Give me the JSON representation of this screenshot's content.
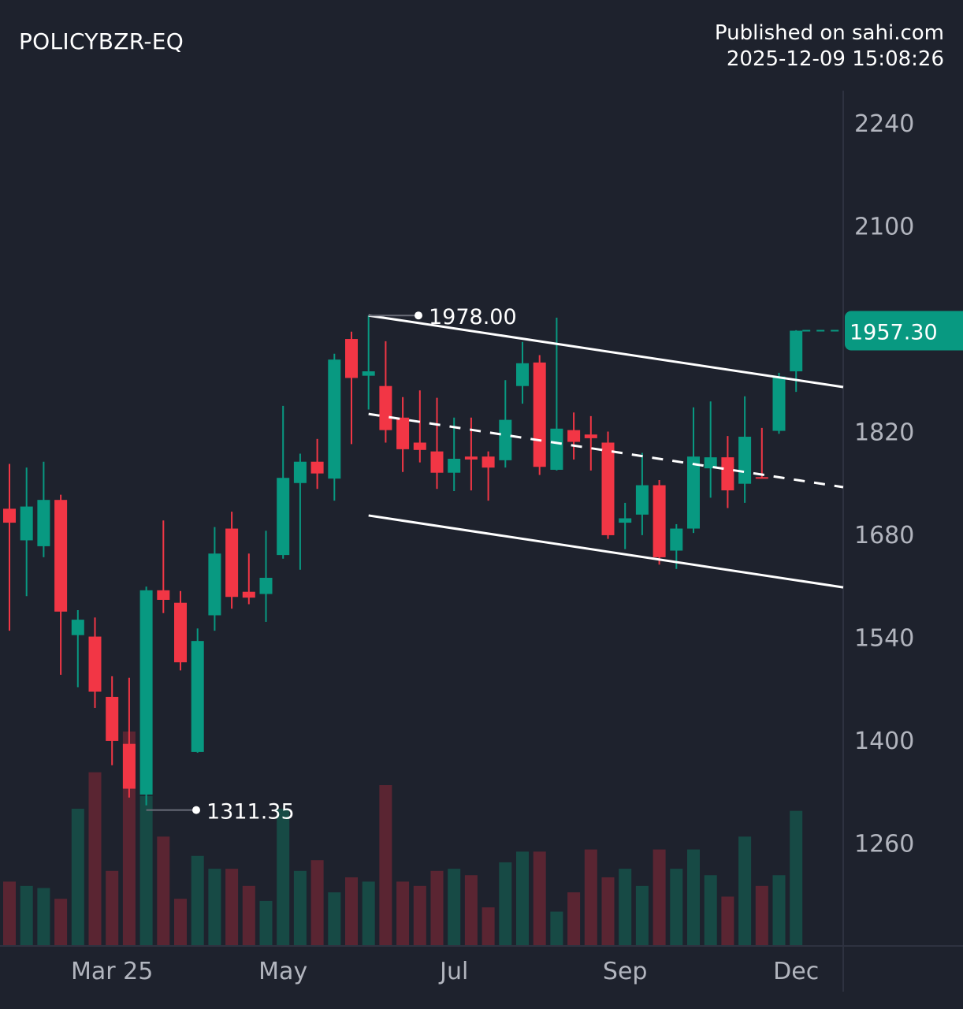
{
  "header": {
    "symbol": "POLICYBZR-EQ",
    "published_line": "Published on sahi.com",
    "timestamp": "2025-12-09 15:08:26"
  },
  "chart_data": {
    "type": "candlestick",
    "title": "POLICYBZR-EQ",
    "interval": "weekly",
    "x_tick_labels": [
      {
        "label": "Mar 25",
        "candle_index": 6
      },
      {
        "label": "May",
        "candle_index": 16
      },
      {
        "label": "Jul",
        "candle_index": 26
      },
      {
        "label": "Sep",
        "candle_index": 36
      },
      {
        "label": "Dec",
        "candle_index": 46
      }
    ],
    "y_ticks": [
      2240,
      2100,
      1820,
      1680,
      1540,
      1400,
      1260
    ],
    "y_tick_labels": [
      "2240",
      "2100",
      "1820",
      "1680",
      "1540",
      "1400",
      "1260"
    ],
    "ylim": [
      1150,
      2330
    ],
    "grid": false,
    "colors": {
      "up": "#089981",
      "down": "#f23645",
      "up_volume": "#174a45",
      "down_volume": "#5a2532",
      "background": "#1e222d"
    },
    "ohlc_fields": [
      "open",
      "high",
      "low",
      "close"
    ],
    "candles": [
      [
        1715,
        1776,
        1549,
        1696
      ],
      [
        1672,
        1771,
        1596,
        1718
      ],
      [
        1664,
        1779,
        1649,
        1727
      ],
      [
        1727,
        1734,
        1489,
        1575
      ],
      [
        1543,
        1577,
        1472,
        1564
      ],
      [
        1541,
        1567,
        1444,
        1466
      ],
      [
        1459,
        1487,
        1366,
        1399
      ],
      [
        1395,
        1485,
        1322,
        1334
      ],
      [
        1326,
        1609,
        1311.35,
        1604
      ],
      [
        1604,
        1699,
        1573,
        1591
      ],
      [
        1587,
        1603,
        1495,
        1506
      ],
      [
        1384,
        1552,
        1383,
        1535
      ],
      [
        1570,
        1690,
        1549,
        1654
      ],
      [
        1688,
        1711,
        1579,
        1595
      ],
      [
        1602,
        1654,
        1585,
        1594
      ],
      [
        1599,
        1685,
        1561,
        1621
      ],
      [
        1652,
        1855,
        1647,
        1757
      ],
      [
        1750,
        1790,
        1632,
        1779
      ],
      [
        1779,
        1810,
        1742,
        1763
      ],
      [
        1756,
        1926,
        1726,
        1918
      ],
      [
        1946,
        1956,
        1803,
        1893
      ],
      [
        1896,
        1978,
        1850,
        1902
      ],
      [
        1882,
        1943,
        1805,
        1822
      ],
      [
        1839,
        1867,
        1765,
        1796
      ],
      [
        1805,
        1876,
        1778,
        1795
      ],
      [
        1793,
        1866,
        1742,
        1764
      ],
      [
        1764,
        1839,
        1739,
        1783
      ],
      [
        1786,
        1839,
        1740,
        1782
      ],
      [
        1786,
        1793,
        1726,
        1771
      ],
      [
        1781,
        1890,
        1771,
        1836
      ],
      [
        1882,
        1942,
        1858,
        1913
      ],
      [
        1914,
        1924,
        1761,
        1772
      ],
      [
        1768,
        1975,
        1767,
        1824
      ],
      [
        1822,
        1846,
        1782,
        1806
      ],
      [
        1816,
        1841,
        1767,
        1811
      ],
      [
        1805,
        1820,
        1674,
        1679
      ],
      [
        1696,
        1723,
        1660,
        1702
      ],
      [
        1707,
        1791,
        1679,
        1747
      ],
      [
        1747,
        1754,
        1639,
        1649
      ],
      [
        1658,
        1694,
        1633,
        1688
      ],
      [
        1688,
        1853,
        1682,
        1786
      ],
      [
        1770,
        1861,
        1730,
        1785
      ],
      [
        1785,
        1814,
        1716,
        1740
      ],
      [
        1749,
        1868,
        1723,
        1813
      ],
      [
        1758,
        1825,
        1756,
        1756
      ],
      [
        1821,
        1900,
        1817,
        1895
      ],
      [
        1902,
        1958,
        1874,
        1957.3
      ]
    ],
    "volume_relative_pct": [
      30,
      28,
      27,
      22,
      64,
      81,
      35,
      100,
      70,
      51,
      22,
      42,
      36,
      36,
      28,
      21,
      64,
      35,
      40,
      25,
      32,
      30,
      75,
      30,
      28,
      35,
      36,
      33,
      18,
      39,
      44,
      44,
      16,
      25,
      45,
      32,
      36,
      28,
      45,
      36,
      45,
      33,
      23,
      51,
      28,
      33,
      63
    ],
    "annotations": {
      "high_label": "1978.00",
      "high_value": 1978.0,
      "high_candle_index": 21,
      "low_label": "1311.35",
      "low_value": 1311.35,
      "low_candle_index": 8,
      "last_price_label": "1957.30",
      "last_price": 1957.3
    },
    "trend_channel": {
      "upper": {
        "start": [
          21,
          1978
        ],
        "end": [
          49.8,
          1880.6
        ],
        "style": "solid"
      },
      "middle": {
        "start": [
          21,
          1844
        ],
        "end": [
          49.8,
          1744.4
        ],
        "style": "dashed"
      },
      "lower": {
        "start": [
          21,
          1705.8
        ],
        "end": [
          49.8,
          1608
        ],
        "style": "solid"
      }
    }
  }
}
